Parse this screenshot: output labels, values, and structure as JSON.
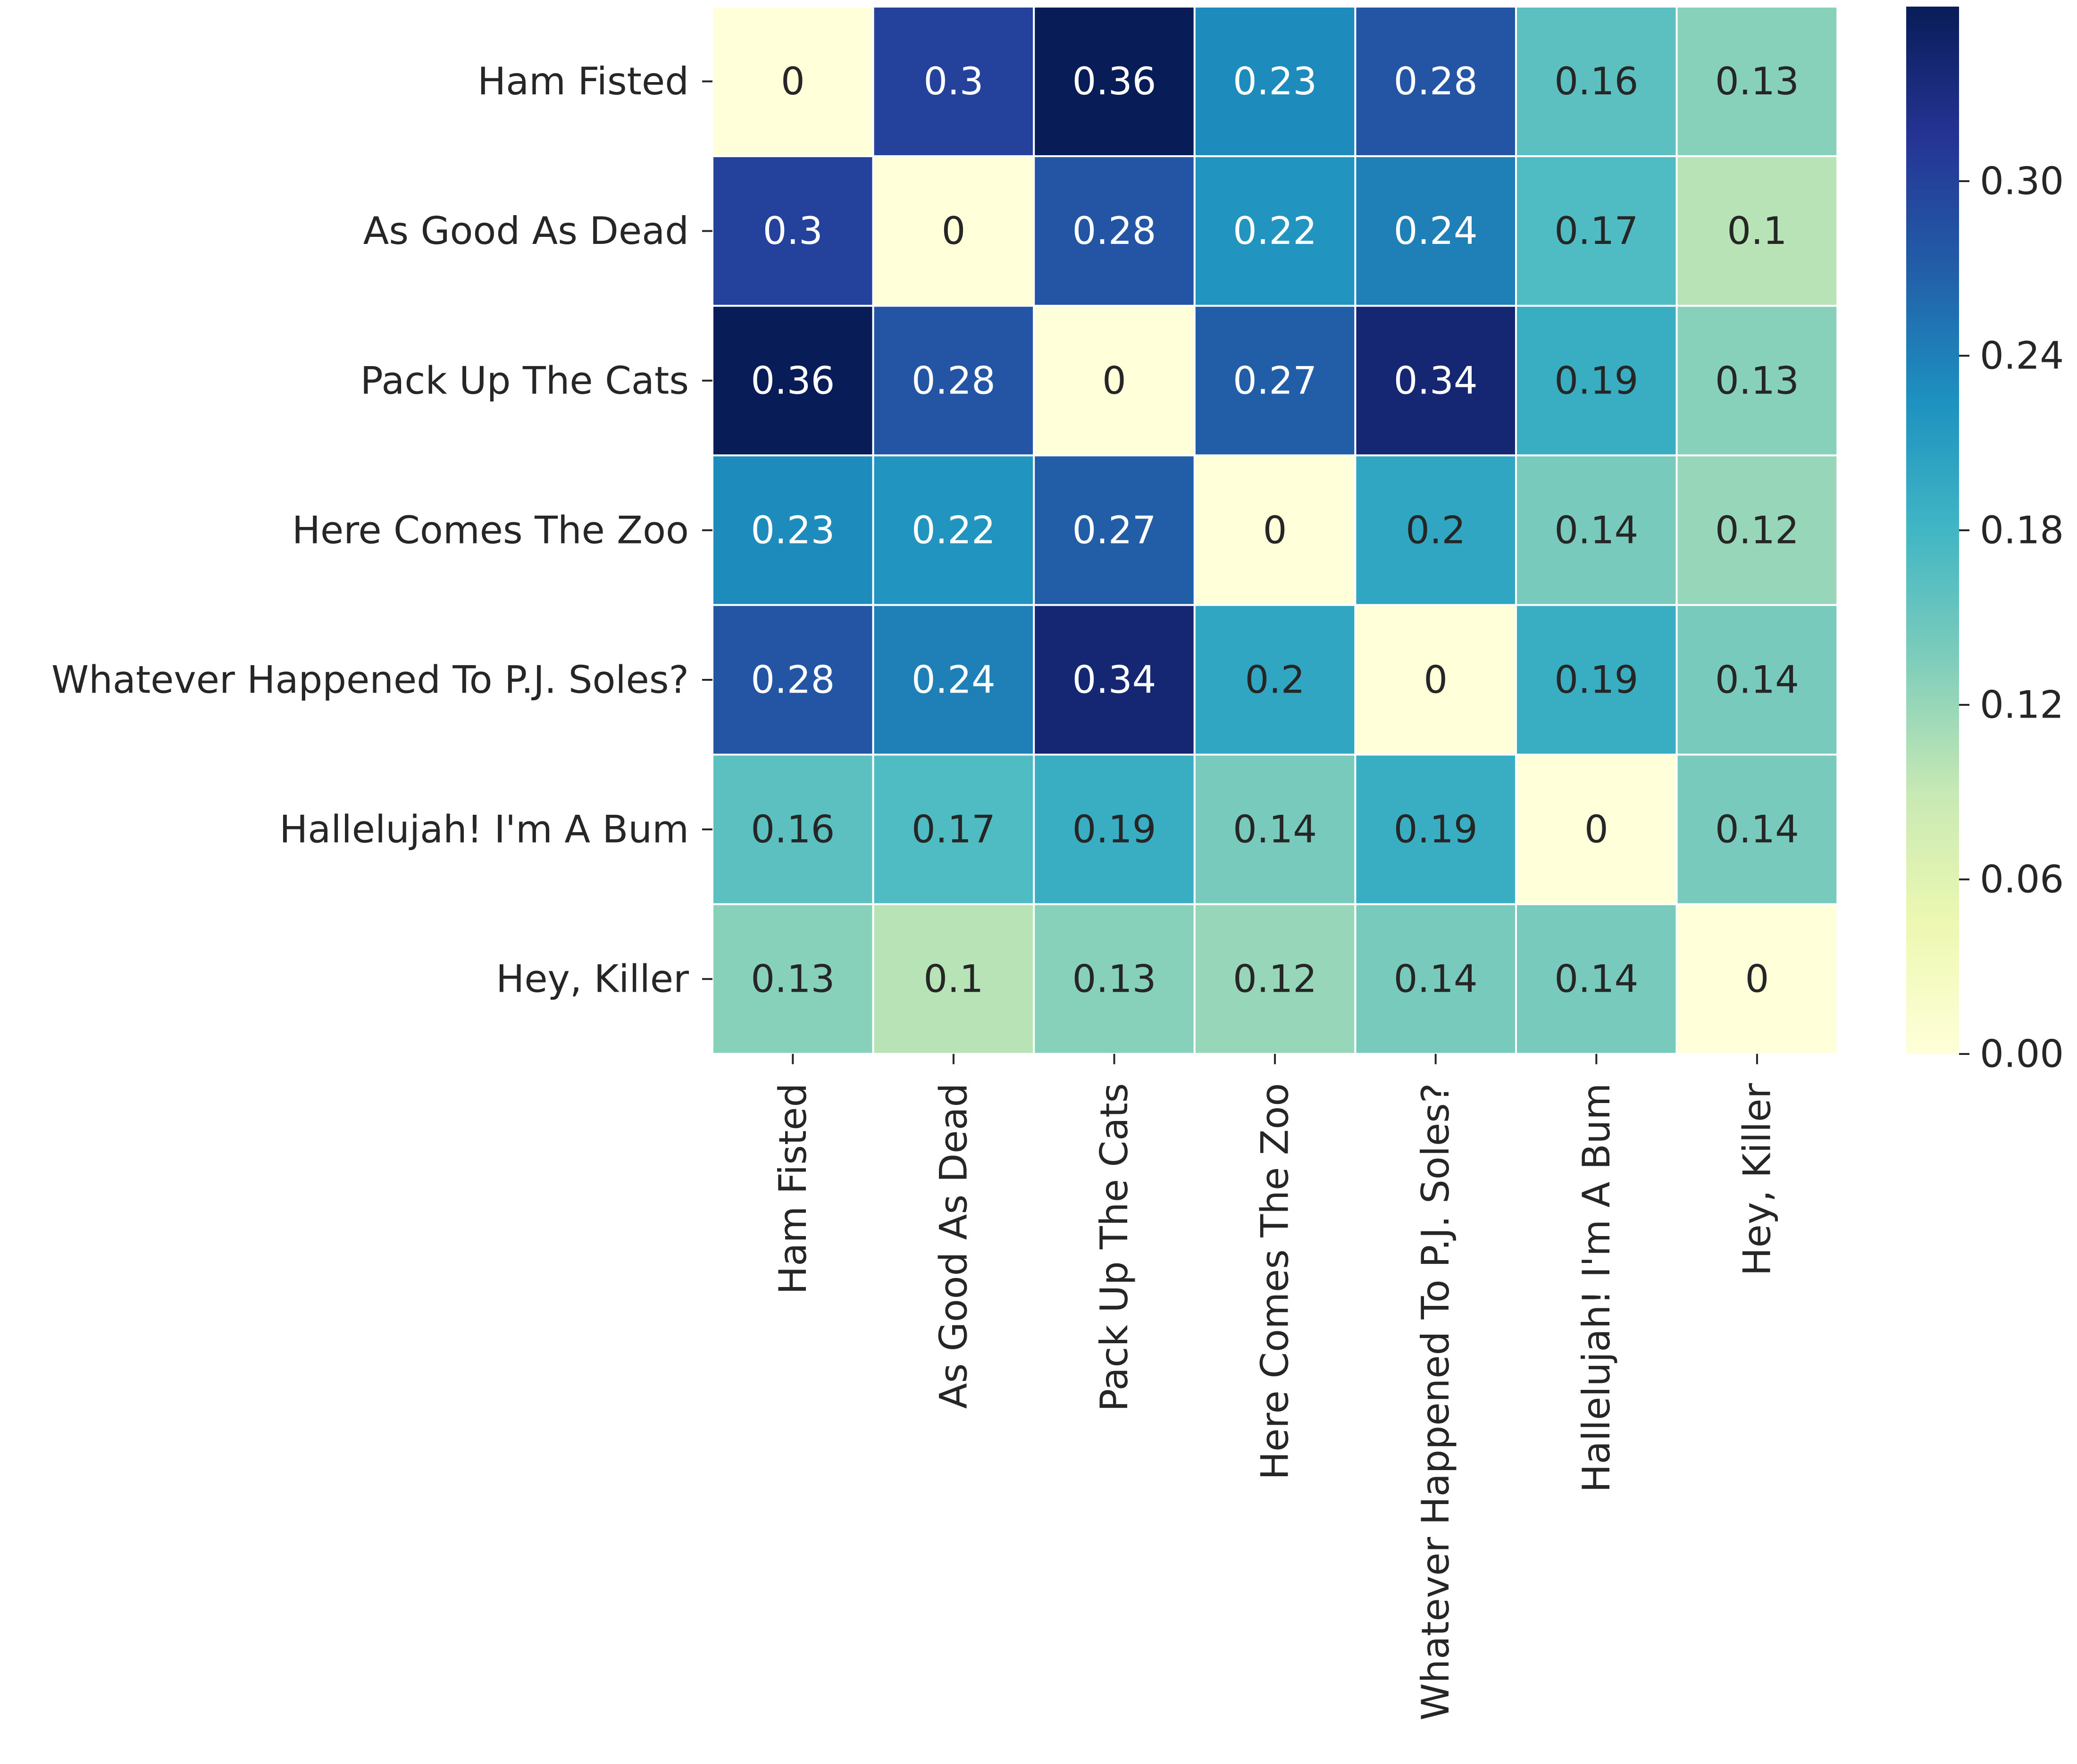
{
  "chart_data": {
    "type": "heatmap",
    "title": "",
    "xlabel": "",
    "ylabel": "",
    "row_labels": [
      "Ham Fisted",
      "As Good As Dead",
      "Pack Up The Cats",
      "Here Comes The Zoo",
      "Whatever Happened To P.J. Soles?",
      "Hallelujah! I'm A Bum",
      "Hey, Killer"
    ],
    "col_labels": [
      "Ham Fisted",
      "As Good As Dead",
      "Pack Up The Cats",
      "Here Comes The Zoo",
      "Whatever Happened To P.J. Soles?",
      "Hallelujah! I'm A Bum",
      "Hey, Killer"
    ],
    "values": [
      [
        0,
        0.3,
        0.36,
        0.23,
        0.28,
        0.16,
        0.13
      ],
      [
        0.3,
        0,
        0.28,
        0.22,
        0.24,
        0.17,
        0.1
      ],
      [
        0.36,
        0.28,
        0,
        0.27,
        0.34,
        0.19,
        0.13
      ],
      [
        0.23,
        0.22,
        0.27,
        0,
        0.2,
        0.14,
        0.12
      ],
      [
        0.28,
        0.24,
        0.34,
        0.2,
        0,
        0.19,
        0.14
      ],
      [
        0.16,
        0.17,
        0.19,
        0.14,
        0.19,
        0,
        0.14
      ],
      [
        0.13,
        0.1,
        0.13,
        0.12,
        0.14,
        0.14,
        0
      ]
    ],
    "value_labels": [
      [
        "0",
        "0.3",
        "0.36",
        "0.23",
        "0.28",
        "0.16",
        "0.13"
      ],
      [
        "0.3",
        "0",
        "0.28",
        "0.22",
        "0.24",
        "0.17",
        "0.1"
      ],
      [
        "0.36",
        "0.28",
        "0",
        "0.27",
        "0.34",
        "0.19",
        "0.13"
      ],
      [
        "0.23",
        "0.22",
        "0.27",
        "0",
        "0.2",
        "0.14",
        "0.12"
      ],
      [
        "0.28",
        "0.24",
        "0.34",
        "0.2",
        "0",
        "0.19",
        "0.14"
      ],
      [
        "0.16",
        "0.17",
        "0.19",
        "0.14",
        "0.19",
        "0",
        "0.14"
      ],
      [
        "0.13",
        "0.1",
        "0.13",
        "0.12",
        "0.14",
        "0.14",
        "0"
      ]
    ],
    "colormap": "YlGnBu",
    "colormap_stops": [
      "#ffffd9",
      "#edf8b1",
      "#c7e9b4",
      "#7fcdbb",
      "#41b6c4",
      "#1d91c0",
      "#225ea8",
      "#253494",
      "#081d58"
    ],
    "colorbar": {
      "range": [
        0,
        0.36
      ],
      "ticks": [
        0,
        0.06,
        0.12,
        0.18,
        0.24,
        0.3
      ],
      "tick_labels": [
        "0.00",
        "0.06",
        "0.12",
        "0.18",
        "0.24",
        "0.30"
      ]
    },
    "text_colors": {
      "light": "#ffffff",
      "dark": "#262626"
    },
    "legend": "colorbar right",
    "grid": false
  }
}
